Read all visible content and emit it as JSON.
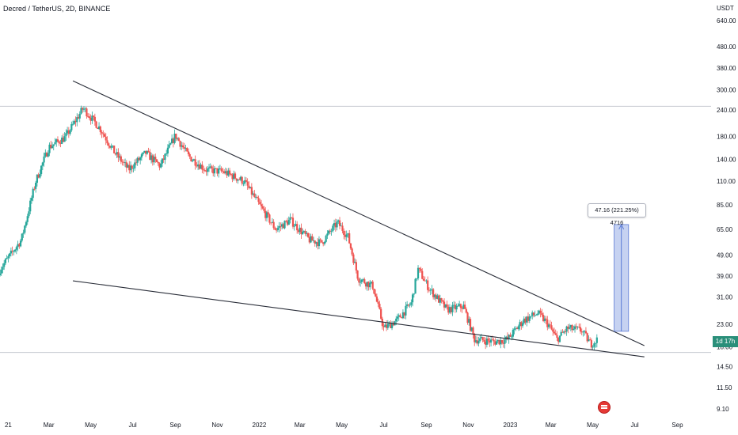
{
  "header": {
    "symbol": "Decred / TetherUS, 2D, BINANCE"
  },
  "axis": {
    "currency": "USDT"
  },
  "price_tag": "1d 17h",
  "measure": {
    "label": "47.16 (221.25%) 4716"
  },
  "colors": {
    "up": "#26a69a",
    "down": "#ef5350",
    "trend": "#2a2e39",
    "measure_fill": "#b3c3ec",
    "measure_edge": "#5b7bd5",
    "hline": "#c6c9d1"
  },
  "chart_data": {
    "type": "candlestick",
    "title": "Decred / TetherUS, 2D, BINANCE",
    "y_scale": "log",
    "ylim": [
      8.5,
      800
    ],
    "y_ticks": [
      640,
      480,
      380,
      300,
      240,
      180,
      140,
      110,
      85,
      65,
      49,
      39,
      31,
      23,
      18,
      14.5,
      11.5,
      9.1
    ],
    "y_tick_labels": [
      "640.00",
      "480.00",
      "380.00",
      "300.00",
      "240.00",
      "180.00",
      "140.00",
      "110.00",
      "85.00",
      "65.00",
      "49.00",
      "39.00",
      "31.00",
      "23.00",
      "18.00",
      "14.50",
      "11.50",
      "9.10"
    ],
    "xlim": [
      "2020-12-20",
      "2023-10-20"
    ],
    "x_ticks": [
      {
        "date": "2021-01-01",
        "label": "21"
      },
      {
        "date": "2021-03-01",
        "label": "Mar"
      },
      {
        "date": "2021-05-01",
        "label": "May"
      },
      {
        "date": "2021-07-01",
        "label": "Jul"
      },
      {
        "date": "2021-09-01",
        "label": "Sep"
      },
      {
        "date": "2021-11-01",
        "label": "Nov"
      },
      {
        "date": "2022-01-01",
        "label": "2022"
      },
      {
        "date": "2022-03-01",
        "label": "Mar"
      },
      {
        "date": "2022-05-01",
        "label": "May"
      },
      {
        "date": "2022-07-01",
        "label": "Jul"
      },
      {
        "date": "2022-09-01",
        "label": "Sep"
      },
      {
        "date": "2022-11-01",
        "label": "Nov"
      },
      {
        "date": "2023-01-01",
        "label": "2023"
      },
      {
        "date": "2023-03-01",
        "label": "Mar"
      },
      {
        "date": "2023-05-01",
        "label": "May"
      },
      {
        "date": "2023-07-01",
        "label": "Jul"
      },
      {
        "date": "2023-09-01",
        "label": "Sep"
      }
    ],
    "price_path": [
      [
        "2020-12-20",
        42
      ],
      [
        "2021-01-20",
        58
      ],
      [
        "2021-02-10",
        110
      ],
      [
        "2021-03-01",
        160
      ],
      [
        "2021-03-25",
        178
      ],
      [
        "2021-04-20",
        245
      ],
      [
        "2021-05-15",
        195
      ],
      [
        "2021-06-05",
        150
      ],
      [
        "2021-06-25",
        125
      ],
      [
        "2021-07-20",
        150
      ],
      [
        "2021-08-10",
        130
      ],
      [
        "2021-09-01",
        182
      ],
      [
        "2021-09-20",
        145
      ],
      [
        "2021-10-15",
        125
      ],
      [
        "2021-11-10",
        122
      ],
      [
        "2021-12-10",
        110
      ],
      [
        "2022-01-01",
        85
      ],
      [
        "2022-01-25",
        65
      ],
      [
        "2022-02-15",
        72
      ],
      [
        "2022-03-15",
        58
      ],
      [
        "2022-04-01",
        56
      ],
      [
        "2022-04-25",
        70
      ],
      [
        "2022-05-10",
        60
      ],
      [
        "2022-05-25",
        38
      ],
      [
        "2022-06-15",
        35
      ],
      [
        "2022-07-01",
        22
      ],
      [
        "2022-07-20",
        24
      ],
      [
        "2022-08-10",
        29
      ],
      [
        "2022-08-20",
        42
      ],
      [
        "2022-09-05",
        34
      ],
      [
        "2022-10-01",
        27
      ],
      [
        "2022-10-25",
        28
      ],
      [
        "2022-11-10",
        19.5
      ],
      [
        "2022-12-10",
        19
      ],
      [
        "2022-12-28",
        19.5
      ],
      [
        "2023-01-20",
        24
      ],
      [
        "2023-02-10",
        26
      ],
      [
        "2023-02-25",
        23
      ],
      [
        "2023-03-10",
        19.5
      ],
      [
        "2023-03-25",
        22
      ],
      [
        "2023-04-15",
        21.5
      ],
      [
        "2023-04-28",
        18.5
      ],
      [
        "2023-05-08",
        19.5
      ]
    ],
    "trendlines": [
      {
        "from": [
          "2021-04-05",
          330
        ],
        "to": [
          "2023-07-15",
          18.2
        ]
      },
      {
        "from": [
          "2021-04-05",
          37
        ],
        "to": [
          "2023-07-15",
          16.1
        ]
      }
    ],
    "horizontal_lines": [
      250,
      16.9
    ],
    "measure_range": {
      "start_date": "2023-06-01",
      "end_date": "2023-06-22",
      "low": 21.3,
      "high": 68.5,
      "label": "47.16 (221.25%) 4716"
    },
    "last_price": 19.5
  }
}
